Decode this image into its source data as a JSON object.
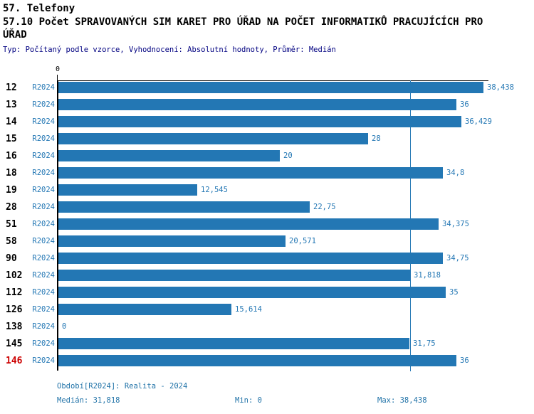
{
  "header": {
    "title": "57. Telefony",
    "subtitle_line1": "57.10 Počet SPRAVOVANÝCH SIM KARET PRO ÚŘAD NA POČET INFORMATIKŮ PRACUJÍCÍCH PRO",
    "subtitle_line2": "ÚŘAD",
    "meta": "Typ: Počítaný podle vzorce, Vyhodnocení: Absolutní hodnoty, Průměr: Medián"
  },
  "chart_data": {
    "type": "bar",
    "orientation": "horizontal",
    "title": "57.10 Počet SPRAVOVANÝCH SIM KARET PRO ÚŘAD NA POČET INFORMATIKŮ PRACUJÍCÍCH PRO ÚŘAD",
    "series_label": "R2024",
    "axis": {
      "origin_label": "0",
      "min": 0,
      "max": 38.438,
      "grid": false
    },
    "median_value": 31.818,
    "bar_color": "#2377B4",
    "highlight_color": "#CC0000",
    "rows": [
      {
        "id": "12",
        "value": 38.438,
        "label": "38,438",
        "highlighted": false
      },
      {
        "id": "13",
        "value": 36,
        "label": "36",
        "highlighted": false
      },
      {
        "id": "14",
        "value": 36.429,
        "label": "36,429",
        "highlighted": false
      },
      {
        "id": "15",
        "value": 28,
        "label": "28",
        "highlighted": false
      },
      {
        "id": "16",
        "value": 20,
        "label": "20",
        "highlighted": false
      },
      {
        "id": "18",
        "value": 34.8,
        "label": "34,8",
        "highlighted": false
      },
      {
        "id": "19",
        "value": 12.545,
        "label": "12,545",
        "highlighted": false
      },
      {
        "id": "28",
        "value": 22.75,
        "label": "22,75",
        "highlighted": false
      },
      {
        "id": "51",
        "value": 34.375,
        "label": "34,375",
        "highlighted": false
      },
      {
        "id": "58",
        "value": 20.571,
        "label": "20,571",
        "highlighted": false
      },
      {
        "id": "90",
        "value": 34.75,
        "label": "34,75",
        "highlighted": false
      },
      {
        "id": "102",
        "value": 31.818,
        "label": "31,818",
        "highlighted": false
      },
      {
        "id": "112",
        "value": 35,
        "label": "35",
        "highlighted": false
      },
      {
        "id": "126",
        "value": 15.614,
        "label": "15,614",
        "highlighted": false
      },
      {
        "id": "138",
        "value": 0,
        "label": "0",
        "highlighted": false
      },
      {
        "id": "145",
        "value": 31.75,
        "label": "31,75",
        "highlighted": false
      },
      {
        "id": "146",
        "value": 36,
        "label": "36",
        "highlighted": true
      }
    ]
  },
  "footer": {
    "period": "Období[R2024]: Realita - 2024",
    "median": "Medián: 31,818",
    "min": "Min: 0",
    "max": "Max: 38,438"
  }
}
